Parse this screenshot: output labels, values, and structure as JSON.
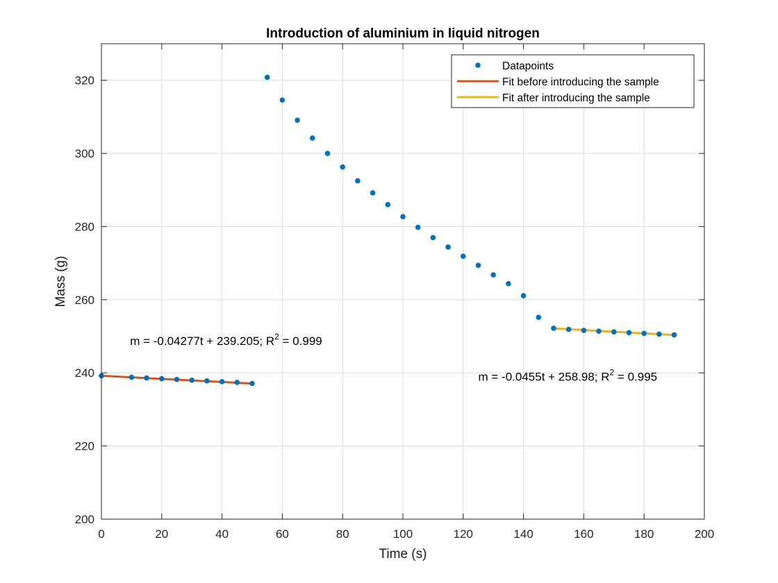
{
  "chart_data": {
    "type": "scatter",
    "title": "Introduction of aluminium in liquid nitrogen",
    "xlabel": "Time (s)",
    "ylabel": "Mass (g)",
    "xlim": [
      0,
      200
    ],
    "ylim": [
      200,
      330
    ],
    "xticks": [
      0,
      20,
      40,
      60,
      80,
      100,
      120,
      140,
      160,
      180,
      200
    ],
    "yticks": [
      200,
      220,
      240,
      260,
      280,
      300,
      320
    ],
    "grid": true,
    "legend_position": "top-right",
    "series": [
      {
        "name": "Datapoints",
        "kind": "markers",
        "color": "#0072BD",
        "x": [
          0,
          10,
          15,
          20,
          25,
          30,
          35,
          40,
          45,
          50,
          55,
          60,
          65,
          70,
          75,
          80,
          85,
          90,
          95,
          100,
          105,
          110,
          115,
          120,
          125,
          130,
          135,
          140,
          145,
          150,
          155,
          160,
          165,
          170,
          175,
          180,
          185,
          190
        ],
        "y": [
          239.2,
          238.8,
          238.6,
          238.4,
          238.2,
          238.0,
          237.8,
          237.6,
          237.4,
          237.1,
          320.8,
          314.6,
          309.1,
          304.2,
          300.0,
          296.3,
          292.5,
          289.2,
          286.0,
          282.7,
          279.8,
          277.0,
          274.4,
          271.9,
          269.4,
          266.8,
          264.4,
          261.1,
          255.2,
          252.2,
          251.9,
          251.6,
          251.4,
          251.2,
          251.0,
          250.8,
          250.6,
          250.4
        ]
      },
      {
        "name": "Fit before introducing the sample",
        "kind": "line",
        "color": "#D95319",
        "x": [
          0,
          50
        ],
        "y": [
          239.205,
          237.07
        ]
      },
      {
        "name": "Fit after introducing the sample",
        "kind": "line",
        "color": "#EDB120",
        "x": [
          150,
          190
        ],
        "y": [
          252.155,
          250.335
        ]
      }
    ],
    "annotations": [
      {
        "prefix": "m = -0.04277t + 239.205; R",
        "sup": "2",
        "suffix": " = 0.999",
        "x": 9.5,
        "y": 247.6
      },
      {
        "prefix": "m = -0.0455t + 258.98; R",
        "sup": "2",
        "suffix": " = 0.995",
        "x": 125,
        "y": 237.9
      }
    ]
  }
}
